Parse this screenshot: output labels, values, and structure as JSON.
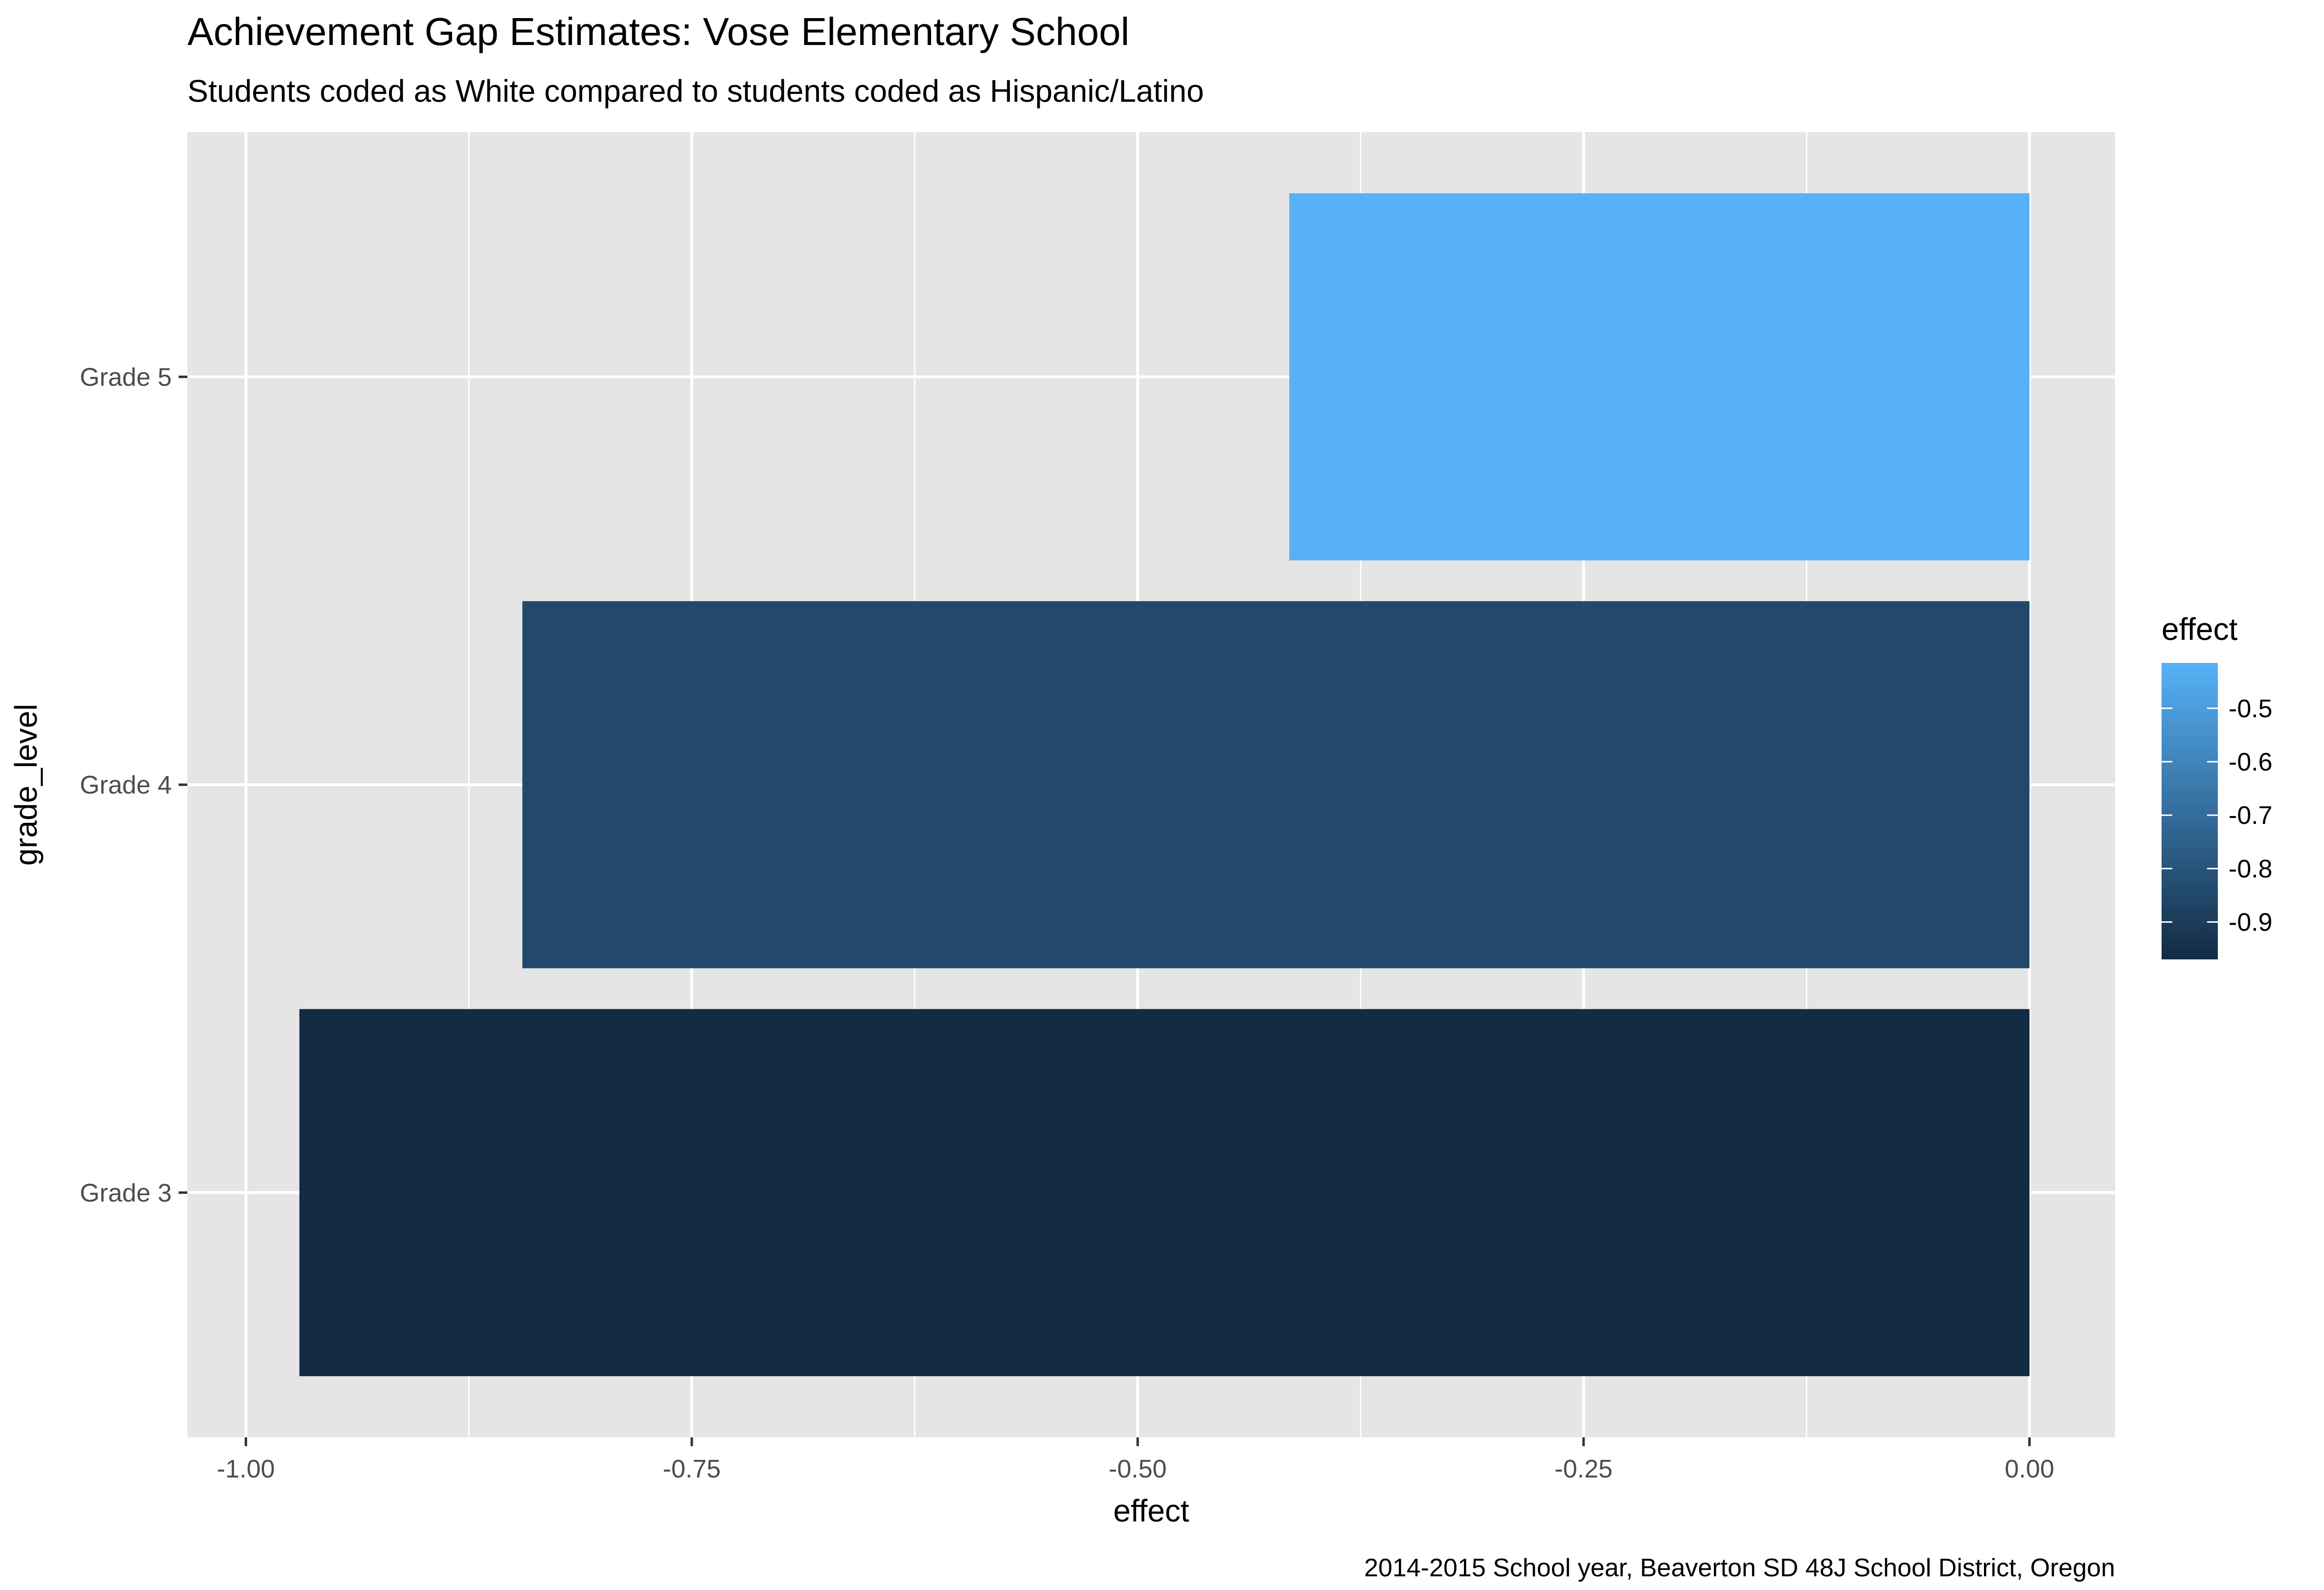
{
  "chart_data": {
    "type": "bar",
    "orientation": "horizontal",
    "title": "Achievement Gap Estimates: Vose Elementary School",
    "subtitle": "Students coded as White compared to students coded as Hispanic/Latino",
    "caption": "2014-2015 School year, Beaverton SD 48J School District, Oregon",
    "xlabel": "effect",
    "ylabel": "grade_level",
    "categories": [
      "Grade 3",
      "Grade 4",
      "Grade 5"
    ],
    "values": [
      -0.97,
      -0.845,
      -0.415
    ],
    "xlim": [
      -1.0328,
      0.048
    ],
    "x_ticks": [
      -1.0,
      -0.75,
      -0.5,
      -0.25,
      0.0
    ],
    "x_tick_labels": [
      "-1.00",
      "-0.75",
      "-0.50",
      "-0.25",
      "0.00"
    ],
    "x_minor_ticks": [
      -0.875,
      -0.625,
      -0.375,
      -0.125
    ],
    "grid": true,
    "panel_background": "#e5e5e5",
    "legend": {
      "title": "effect",
      "position": "right",
      "type": "colorbar",
      "range": [
        -0.97,
        -0.415
      ],
      "breaks": [
        -0.5,
        -0.6,
        -0.7,
        -0.8,
        -0.9
      ],
      "labels": [
        "-0.5",
        "-0.6",
        "-0.7",
        "-0.8",
        "-0.9"
      ],
      "low_color": "#132b43",
      "high_color": "#56b1f7"
    }
  }
}
